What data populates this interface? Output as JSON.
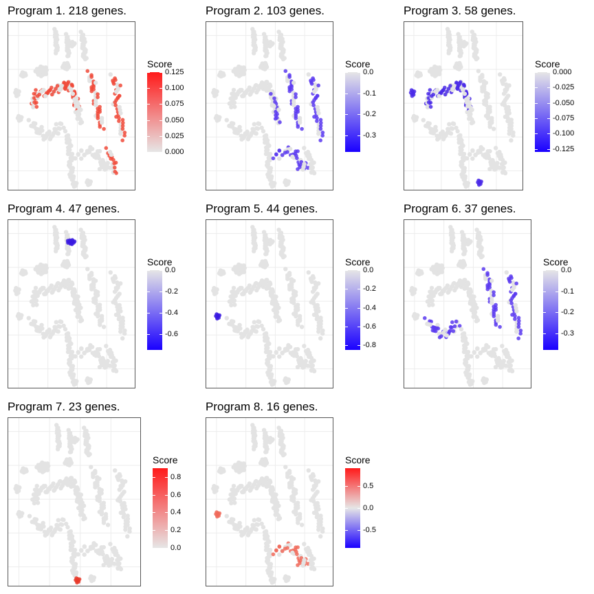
{
  "chart_data": [
    {
      "type": "scatter",
      "title": "Program 1. 218 genes.",
      "legend_title": "Score",
      "scale": {
        "low": "#e6e6e6",
        "high": "#ff1a1a",
        "min": 0.0,
        "max": 0.125
      },
      "ticks": [
        {
          "value": 0.125,
          "label": "0.125"
        },
        {
          "value": 0.1,
          "label": "0.100"
        },
        {
          "value": 0.075,
          "label": "0.075"
        },
        {
          "value": 0.05,
          "label": "0.050"
        },
        {
          "value": 0.025,
          "label": "0.025"
        },
        {
          "value": 0.0,
          "label": "0.000"
        }
      ],
      "highlight": {
        "regions": [
          "arc",
          "midright",
          "rightloop",
          "bottomright"
        ],
        "color": "#f04a3a"
      }
    },
    {
      "type": "scatter",
      "title": "Program 2. 103 genes.",
      "legend_title": "Score",
      "scale": {
        "low": "#1a00ff",
        "high": "#e6e6e6",
        "min": -0.38,
        "max": 0.0
      },
      "ticks": [
        {
          "value": 0.0,
          "label": "0.0"
        },
        {
          "value": -0.1,
          "label": "-0.1"
        },
        {
          "value": -0.2,
          "label": "-0.2"
        },
        {
          "value": -0.3,
          "label": "-0.3"
        }
      ],
      "highlight": {
        "regions": [
          "arcend",
          "midright",
          "rightloop",
          "bottomarc"
        ],
        "color": "#5a3af0"
      }
    },
    {
      "type": "scatter",
      "title": "Program 3. 58 genes.",
      "legend_title": "Score",
      "scale": {
        "low": "#1a00ff",
        "high": "#e6e6e6",
        "min": -0.13,
        "max": 0.0
      },
      "ticks": [
        {
          "value": 0.0,
          "label": "0.000"
        },
        {
          "value": -0.025,
          "label": "-0.025"
        },
        {
          "value": -0.05,
          "label": "-0.050"
        },
        {
          "value": -0.075,
          "label": "-0.075"
        },
        {
          "value": -0.1,
          "label": "-0.100"
        },
        {
          "value": -0.125,
          "label": "-0.125"
        }
      ],
      "highlight": {
        "regions": [
          "arc",
          "leftdot",
          "bottomdots"
        ],
        "color": "#4a2ae8"
      }
    },
    {
      "type": "scatter",
      "title": "Program 4. 47 genes.",
      "legend_title": "Score",
      "scale": {
        "low": "#1a00ff",
        "high": "#e6e6e6",
        "min": -0.75,
        "max": 0.0
      },
      "ticks": [
        {
          "value": 0.0,
          "label": "0.0"
        },
        {
          "value": -0.2,
          "label": "-0.2"
        },
        {
          "value": -0.4,
          "label": "-0.4"
        },
        {
          "value": -0.6,
          "label": "-0.6"
        }
      ],
      "highlight": {
        "regions": [
          "topdot"
        ],
        "color": "#3a1ae0"
      }
    },
    {
      "type": "scatter",
      "title": "Program 5. 44 genes.",
      "legend_title": "Score",
      "scale": {
        "low": "#1a00ff",
        "high": "#e6e6e6",
        "min": -0.85,
        "max": 0.0
      },
      "ticks": [
        {
          "value": 0.0,
          "label": "0.0"
        },
        {
          "value": -0.2,
          "label": "-0.2"
        },
        {
          "value": -0.4,
          "label": "-0.4"
        },
        {
          "value": -0.6,
          "label": "-0.6"
        },
        {
          "value": -0.8,
          "label": "-0.8"
        }
      ],
      "highlight": {
        "regions": [
          "leftdot2"
        ],
        "color": "#3a1ae0"
      }
    },
    {
      "type": "scatter",
      "title": "Program 6. 37 genes.",
      "legend_title": "Score",
      "scale": {
        "low": "#1a00ff",
        "high": "#e6e6e6",
        "min": -0.38,
        "max": 0.0
      },
      "ticks": [
        {
          "value": 0.0,
          "label": "0.0"
        },
        {
          "value": -0.1,
          "label": "-0.1"
        },
        {
          "value": -0.2,
          "label": "-0.2"
        },
        {
          "value": -0.3,
          "label": "-0.3"
        }
      ],
      "highlight": {
        "regions": [
          "midright",
          "rightloop",
          "leftlower"
        ],
        "color": "#5a3af0"
      }
    },
    {
      "type": "scatter",
      "title": "Program 7. 23 genes.",
      "legend_title": "Score",
      "scale": {
        "low": "#e6e6e6",
        "high": "#ff1a1a",
        "min": 0.0,
        "max": 0.9
      },
      "ticks": [
        {
          "value": 0.8,
          "label": "0.8"
        },
        {
          "value": 0.6,
          "label": "0.6"
        },
        {
          "value": 0.4,
          "label": "0.4"
        },
        {
          "value": 0.2,
          "label": "0.2"
        },
        {
          "value": 0.0,
          "label": "0.0"
        }
      ],
      "highlight": {
        "regions": [
          "bottomdot"
        ],
        "color": "#e83a2a"
      }
    },
    {
      "type": "scatter",
      "title": "Program 8. 16 genes.",
      "legend_title": "Score",
      "scale": {
        "low": "#1a00ff",
        "mid": "#e6e6e6",
        "high": "#ff1a1a",
        "min": -0.9,
        "max": 0.9
      },
      "ticks": [
        {
          "value": 0.5,
          "label": "0.5"
        },
        {
          "value": 0.0,
          "label": "0.0"
        },
        {
          "value": -0.5,
          "label": "-0.5"
        }
      ],
      "highlight": {
        "regions": [
          "leftdot2",
          "bottomarc"
        ],
        "color": "#f06a5a"
      }
    }
  ]
}
